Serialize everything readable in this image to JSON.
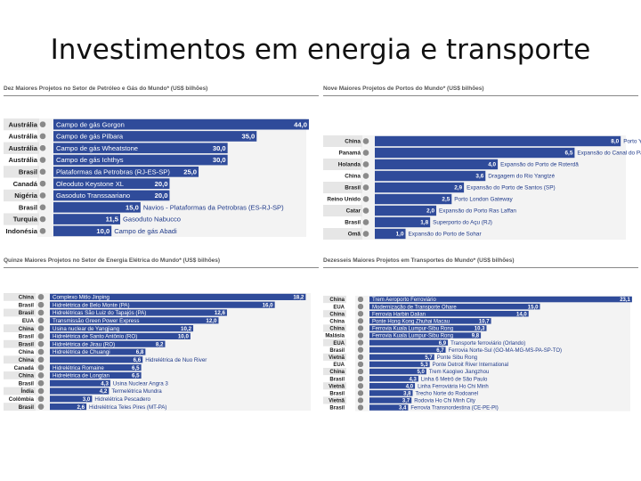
{
  "slide_title": "Investimentos em energia e transporte",
  "colors": {
    "bar": "#2f4b9a",
    "label_bg": "#e6e6e6",
    "panel_bg": "#f3f3f3",
    "bar_text": "#ffffff",
    "dark_text": "#1f3a8a"
  },
  "chart_data": [
    {
      "type": "bar",
      "orientation": "horizontal",
      "title": "Dez Maiores Projetos no Setor de Petróleo e Gás do Mundo* (US$ bilhões)",
      "xlim": [
        0,
        46
      ],
      "categories": [
        "Austrália",
        "Austrália",
        "Austrália",
        "Austrália",
        "Brasil",
        "Canadá",
        "Nigéria",
        "Brasil",
        "Turquia",
        "Indonésia"
      ],
      "projects": [
        "Campo de gás Gorgon",
        "Campo de gás Pilbara",
        "Campo de gás Wheatstone",
        "Campo de gás Ichthys",
        "Plataformas da Petrobras (RJ-ES-SP)",
        "Oleoduto Keystone XL",
        "Gasoduto Transsaariano",
        "Navios - Plataformas da Petrobras (ES-RJ-SP)",
        "Gasoduto Nabucco",
        "Campo de gás Abadi"
      ],
      "value_labels": [
        "44,0",
        "35,0",
        "30,0",
        "30,0",
        "25,0",
        "20,0",
        "20,0",
        "15,0",
        "11,5",
        "10,0"
      ],
      "values": [
        44.0,
        35.0,
        30.0,
        30.0,
        25.0,
        20.0,
        20.0,
        15.0,
        11.5,
        10.0
      ]
    },
    {
      "type": "bar",
      "orientation": "horizontal",
      "title": "Nove Maiores Projetos de Portos do Mundo* (US$ bilhões)",
      "xlim": [
        0,
        8.4
      ],
      "categories": [
        "China",
        "Panamá",
        "Holanda",
        "China",
        "Brasil",
        "Reino Unido",
        "Catar",
        "Brasil",
        "Omã"
      ],
      "projects": [
        "Porto Yangshan",
        "Expansão do Canal do Panamá",
        "Expansão do Porto de Roterdã",
        "Dragagem do Rio Yangtzé",
        "Expansão do Porto de Santos (SP)",
        "Porto London Gateway",
        "Expansão do Porto Ras Laffan",
        "Superporto do Açu (RJ)",
        "Expansão do Porto de Sohar"
      ],
      "value_labels": [
        "8,0",
        "6,5",
        "4,0",
        "3,6",
        "2,9",
        "2,5",
        "2,0",
        "1,8",
        "1,0"
      ],
      "values": [
        8.0,
        6.5,
        4.0,
        3.6,
        2.9,
        2.5,
        2.0,
        1.8,
        1.0
      ]
    },
    {
      "type": "bar",
      "orientation": "horizontal",
      "title": "Quinze Maiores Projetos no Setor de Energia Elétrica do Mundo* (US$ bilhões)",
      "xlim": [
        0,
        19
      ],
      "categories": [
        "China",
        "Brasil",
        "Brasil",
        "EUA",
        "China",
        "Brasil",
        "Brasil",
        "China",
        "China",
        "Canadá",
        "China",
        "Brasil",
        "Índia",
        "Colômbia",
        "Brasil"
      ],
      "projects": [
        "Complexo Mitlo Jinping",
        "Hidrelétrica de Belo Monte (PA)",
        "Hidrelétricas São Luiz do Tapajós (PA)",
        "Transmissão Green Power Express",
        "Usina nuclear de Yangjiang",
        "Hidrelétrica de Santo Antônio (RO)",
        "Hidrelétrica de Jirau (RO)",
        "Hidrelétrica de Chuangi",
        "Hidrelétrica de Nuo River",
        "Hidrelétrica Romaine",
        "Hidrelétrica de Longtan",
        "Usina Nuclear Angra 3",
        "Termelétrica Mundra",
        "Hidrelétrica Pescadero",
        "Hidrelétrica Teles Pires (MT-PA)"
      ],
      "value_labels": [
        "18,2",
        "16,0",
        "12,6",
        "12,0",
        "10,2",
        "10,0",
        "8,2",
        "6,8",
        "6,6",
        "6,5",
        "6,5",
        "4,3",
        "4,2",
        "3,0",
        "2,6"
      ],
      "values": [
        18.2,
        16.0,
        12.6,
        12.0,
        10.2,
        10.0,
        8.2,
        6.8,
        6.6,
        6.5,
        6.5,
        4.3,
        4.2,
        3.0,
        2.6
      ]
    },
    {
      "type": "bar",
      "orientation": "horizontal",
      "title": "Dezesseis Maiores Projetos em Transportes do Mundo* (US$ bilhões)",
      "xlim": [
        0,
        23.5
      ],
      "categories": [
        "China",
        "EUA",
        "China",
        "China",
        "China",
        "Malásia",
        "EUA",
        "Brasil",
        "Vietnã",
        "EUA",
        "China",
        "Brasil",
        "Vietnã",
        "Brasil",
        "Vietnã",
        "Brasil"
      ],
      "projects": [
        "Trem Aeroporto Ferroviário",
        "Modernização de Transporte Ohare",
        "Ferrovia Harbin Dalian",
        "Ponte Hong Kong Zhuhai Macau",
        "Ferrovia Kuala Lumpur-Sibu Rong",
        "Ferrovia Kuala Lumpur-Sibu Rong",
        "Transporte ferroviário (Orlando)",
        "Ferrovia Norte-Sul (GO-MA-MG-MS-PA-SP-TO)",
        "Ponte Sibu Rong",
        "Ponte Detroit River International",
        "Trem Kaogiwo Jiangzhou",
        "Linha 6 Metrô de São Paulo",
        "Linha Ferroviária Ho Chi Minh",
        "Trecho Norte do Rodoanel",
        "Rodovia Ho Chi Minh City",
        "Ferrovia Transnordestina (CE-PE-PI)"
      ],
      "value_labels": [
        "23,1",
        "15,0",
        "14,0",
        "10,7",
        "10,3",
        "9,8",
        "6,9",
        "6,7",
        "5,7",
        "5,3",
        "5,0",
        "4,3",
        "4,0",
        "3,8",
        "3,7",
        "3,4"
      ],
      "values": [
        23.1,
        15.0,
        14.0,
        10.7,
        10.3,
        9.8,
        6.9,
        6.7,
        5.7,
        5.3,
        5.0,
        4.3,
        4.0,
        3.8,
        3.7,
        3.4
      ]
    }
  ]
}
